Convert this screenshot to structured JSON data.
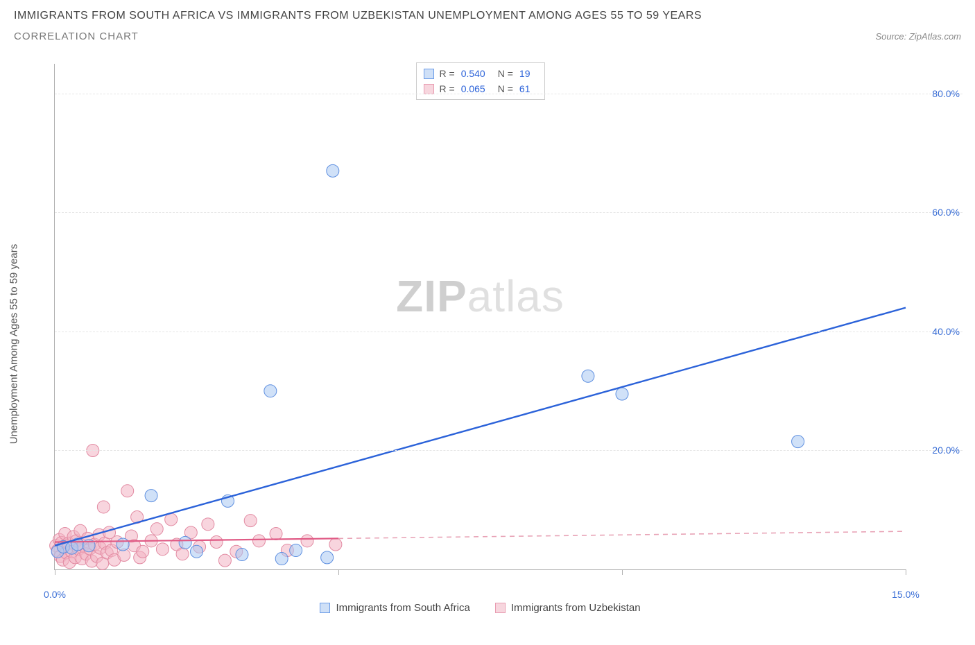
{
  "header": {
    "title": "IMMIGRANTS FROM SOUTH AFRICA VS IMMIGRANTS FROM UZBEKISTAN UNEMPLOYMENT AMONG AGES 55 TO 59 YEARS",
    "subtitle": "CORRELATION CHART",
    "source": "Source: ZipAtlas.com"
  },
  "chart": {
    "type": "scatter",
    "y_axis_label": "Unemployment Among Ages 55 to 59 years",
    "watermark_a": "ZIP",
    "watermark_b": "atlas",
    "xlim": [
      0,
      15
    ],
    "ylim": [
      0,
      85
    ],
    "x_ticks": [
      0,
      5,
      10,
      15
    ],
    "x_tick_labels": [
      "0.0%",
      "",
      "",
      "15.0%"
    ],
    "y_ticks": [
      20,
      40,
      60,
      80
    ],
    "y_tick_labels": [
      "20.0%",
      "40.0%",
      "60.0%",
      "80.0%"
    ],
    "grid_color": "#e5e5e5",
    "axis_color": "#b0b0b0",
    "background_color": "#ffffff",
    "tick_label_color": "#3b6fd6",
    "axis_label_color": "#555555",
    "marker_radius": 9,
    "watermark_color": "#cfcfcf",
    "watermark_fontsize": 64
  },
  "legend_top": {
    "rows": [
      {
        "swatch_fill": "#cfe0f7",
        "swatch_stroke": "#6a9be8",
        "r_label": "R =",
        "r_value": "0.540",
        "n_label": "N =",
        "n_value": "19"
      },
      {
        "swatch_fill": "#f7d6de",
        "swatch_stroke": "#e89bb0",
        "r_label": "R =",
        "r_value": "0.065",
        "n_label": "N =",
        "n_value": "61"
      }
    ]
  },
  "legend_bottom": {
    "items": [
      {
        "swatch_fill": "#cfe0f7",
        "swatch_stroke": "#6a9be8",
        "label": "Immigrants from South Africa"
      },
      {
        "swatch_fill": "#f7d6de",
        "swatch_stroke": "#e89bb0",
        "label": "Immigrants from Uzbekistan"
      }
    ]
  },
  "series": [
    {
      "name": "south_africa",
      "fill": "#a9c8f2",
      "stroke": "#5e8fe0",
      "fill_opacity": 0.55,
      "regression": {
        "x1": 0,
        "y1": 4.0,
        "x2": 15,
        "y2": 44.0,
        "stroke": "#2b62d9",
        "width": 2.4,
        "dash": ""
      },
      "points": [
        [
          0.05,
          3.0
        ],
        [
          0.15,
          3.8
        ],
        [
          0.3,
          3.6
        ],
        [
          0.4,
          4.2
        ],
        [
          1.2,
          4.2
        ],
        [
          1.7,
          12.4
        ],
        [
          2.3,
          4.5
        ],
        [
          2.5,
          3.0
        ],
        [
          3.05,
          11.5
        ],
        [
          3.3,
          2.5
        ],
        [
          3.8,
          30.0
        ],
        [
          4.0,
          1.8
        ],
        [
          4.25,
          3.2
        ],
        [
          4.8,
          2.0
        ],
        [
          4.9,
          67.0
        ],
        [
          9.4,
          32.5
        ],
        [
          10.0,
          29.5
        ],
        [
          13.1,
          21.5
        ],
        [
          0.6,
          4.0
        ]
      ]
    },
    {
      "name": "uzbekistan",
      "fill": "#f2b3c2",
      "stroke": "#e28aa2",
      "fill_opacity": 0.55,
      "regression_solid": {
        "x1": 0,
        "y1": 4.6,
        "x2": 5,
        "y2": 5.2,
        "stroke": "#e05a85",
        "width": 2.2
      },
      "regression_dash": {
        "x1": 5,
        "y1": 5.2,
        "x2": 15,
        "y2": 6.4,
        "stroke": "#e8a3b6",
        "width": 1.6,
        "dash": "7 6"
      },
      "points": [
        [
          0.02,
          4.0
        ],
        [
          0.05,
          3.2
        ],
        [
          0.08,
          5.0
        ],
        [
          0.1,
          2.2
        ],
        [
          0.12,
          4.5
        ],
        [
          0.14,
          1.6
        ],
        [
          0.16,
          3.8
        ],
        [
          0.18,
          6.0
        ],
        [
          0.2,
          2.8
        ],
        [
          0.24,
          4.4
        ],
        [
          0.26,
          1.2
        ],
        [
          0.3,
          3.0
        ],
        [
          0.33,
          5.5
        ],
        [
          0.36,
          2.0
        ],
        [
          0.38,
          4.8
        ],
        [
          0.42,
          3.4
        ],
        [
          0.45,
          6.5
        ],
        [
          0.48,
          1.8
        ],
        [
          0.5,
          4.0
        ],
        [
          0.55,
          2.6
        ],
        [
          0.58,
          5.2
        ],
        [
          0.62,
          3.5
        ],
        [
          0.65,
          1.4
        ],
        [
          0.67,
          20.0
        ],
        [
          0.7,
          4.2
        ],
        [
          0.74,
          2.2
        ],
        [
          0.78,
          5.8
        ],
        [
          0.8,
          3.6
        ],
        [
          0.84,
          1.0
        ],
        [
          0.86,
          10.5
        ],
        [
          0.88,
          4.4
        ],
        [
          0.92,
          2.8
        ],
        [
          0.96,
          6.2
        ],
        [
          1.0,
          3.2
        ],
        [
          1.05,
          1.6
        ],
        [
          1.1,
          4.6
        ],
        [
          1.22,
          2.4
        ],
        [
          1.28,
          13.2
        ],
        [
          1.35,
          5.6
        ],
        [
          1.4,
          4.0
        ],
        [
          1.45,
          8.8
        ],
        [
          1.5,
          2.0
        ],
        [
          1.55,
          3.0
        ],
        [
          1.7,
          4.8
        ],
        [
          1.8,
          6.8
        ],
        [
          1.9,
          3.4
        ],
        [
          2.05,
          8.4
        ],
        [
          2.15,
          4.2
        ],
        [
          2.25,
          2.6
        ],
        [
          2.4,
          6.2
        ],
        [
          2.55,
          3.8
        ],
        [
          2.7,
          7.6
        ],
        [
          2.85,
          4.6
        ],
        [
          3.0,
          1.5
        ],
        [
          3.2,
          3.0
        ],
        [
          3.45,
          8.2
        ],
        [
          3.6,
          4.8
        ],
        [
          3.9,
          6.0
        ],
        [
          4.1,
          3.2
        ],
        [
          4.45,
          4.8
        ],
        [
          4.95,
          4.2
        ]
      ]
    }
  ]
}
